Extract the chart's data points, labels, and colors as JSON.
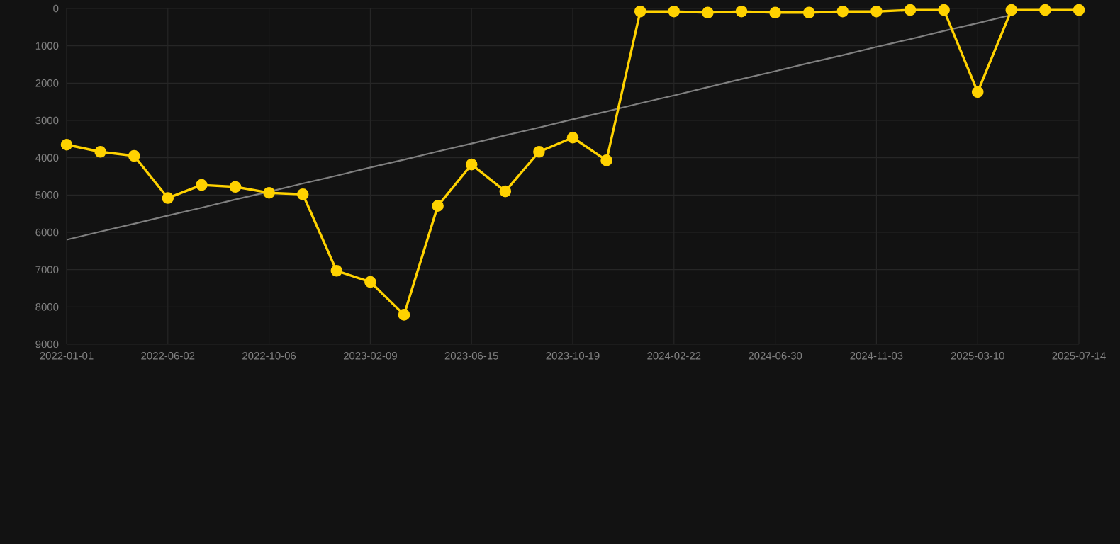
{
  "chart_data": {
    "type": "line",
    "categories": [
      "2022-01-01",
      null,
      null,
      "2022-06-02",
      null,
      null,
      "2022-10-06",
      null,
      null,
      "2023-02-09",
      null,
      null,
      "2023-06-15",
      null,
      null,
      "2023-10-19",
      null,
      null,
      "2024-02-22",
      null,
      null,
      "2024-06-30",
      null,
      null,
      "2024-11-03",
      null,
      null,
      "2025-03-10",
      null,
      null,
      "2025-07-14"
    ],
    "series": [
      {
        "color": "#ffd200",
        "marker": "circle",
        "values": [
          3650,
          3840,
          3950,
          5080,
          4730,
          4780,
          4940,
          4980,
          7030,
          7330,
          8210,
          5290,
          4180,
          4900,
          3840,
          3460,
          4070,
          80,
          80,
          110,
          80,
          110,
          110,
          80,
          80,
          40,
          40,
          2240,
          40,
          40,
          40
        ]
      },
      {
        "color": "#808080",
        "marker": "none",
        "values": [
          6200,
          5980,
          5770,
          5550,
          5340,
          5120,
          4910,
          4690,
          4480,
          4260,
          4050,
          3830,
          3620,
          3400,
          3190,
          2970,
          2760,
          2540,
          2330,
          2110,
          1890,
          1680,
          1460,
          1250,
          1030,
          820,
          600,
          390,
          170,
          null,
          null
        ]
      }
    ],
    "ylim": [
      9000,
      0
    ],
    "yticks": [
      0,
      1000,
      2000,
      3000,
      4000,
      5000,
      6000,
      7000,
      8000,
      9000
    ],
    "grid": true
  }
}
